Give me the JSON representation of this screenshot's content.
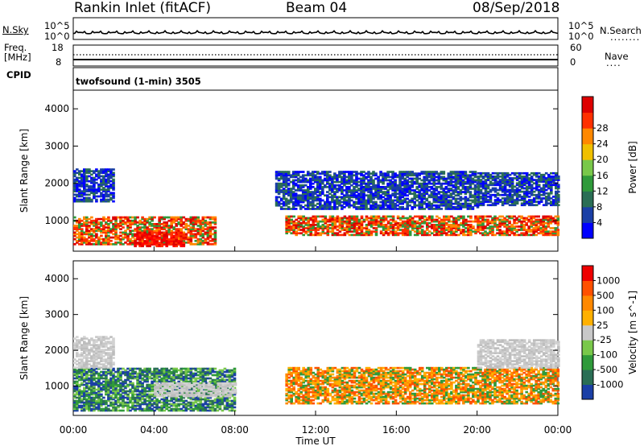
{
  "header": {
    "station": "Rankin Inlet (fitACF)",
    "beam": "Beam 04",
    "date": "08/Sep/2018"
  },
  "panels": {
    "nsky_label": "N.Sky",
    "nsky_top": "10^5",
    "nsky_bottom": "10^0",
    "nsearch_label": "N.Search",
    "nsearch_top": "10^5",
    "nsearch_bottom": "10^0",
    "freq_label": "Freq.",
    "freq_unit": "[MHz]",
    "freq_top": "18",
    "freq_bottom": "8",
    "nave_label": "Nave",
    "nave_top": "60",
    "nave_bottom": "0",
    "cpid_label": "CPID",
    "program": "twofsound (1-min) 3505"
  },
  "chart_data": [
    {
      "type": "heatmap",
      "title": "",
      "xlabel": "Time UT",
      "ylabel": "Slant Range [km]",
      "x_ticks": [
        "00:00",
        "04:00",
        "08:00",
        "12:00",
        "16:00",
        "20:00",
        "00:00"
      ],
      "y_ticks": [
        "1000",
        "2000",
        "3000",
        "4000"
      ],
      "xlim": [
        0,
        24
      ],
      "ylim": [
        180,
        4500
      ],
      "colorbar": {
        "label": "Power [dB]",
        "ticks": [
          "4",
          "8",
          "12",
          "16",
          "20",
          "24",
          "28"
        ],
        "colors": [
          "#0000ff",
          "#1a3fa6",
          "#2a6e55",
          "#2f9a3a",
          "#79c84a",
          "#f0c000",
          "#ff8800",
          "#ff3000",
          "#dd0000"
        ]
      },
      "regions": [
        {
          "t0": 0.0,
          "t1": 7.0,
          "r0": 350,
          "r1": 1100,
          "level": "high"
        },
        {
          "t0": 3.0,
          "t1": 5.5,
          "r0": 300,
          "r1": 700,
          "level": "max"
        },
        {
          "t0": 10.5,
          "t1": 24.0,
          "r0": 600,
          "r1": 1100,
          "level": "high"
        },
        {
          "t0": 0.0,
          "t1": 2.0,
          "r0": 1500,
          "r1": 2400,
          "level": "low"
        },
        {
          "t0": 10.0,
          "t1": 20.0,
          "r0": 1300,
          "r1": 2300,
          "level": "low"
        },
        {
          "t0": 20.0,
          "t1": 24.0,
          "r0": 1400,
          "r1": 2300,
          "level": "low"
        }
      ]
    },
    {
      "type": "heatmap",
      "title": "",
      "xlabel": "Time UT",
      "ylabel": "Slant Range [km]",
      "x_ticks": [
        "00:00",
        "04:00",
        "08:00",
        "12:00",
        "16:00",
        "20:00",
        "00:00"
      ],
      "y_ticks": [
        "1000",
        "2000",
        "3000",
        "4000"
      ],
      "xlim": [
        0,
        24
      ],
      "ylim": [
        180,
        4500
      ],
      "colorbar": {
        "label": "Velocity [m s^-1]",
        "ticks": [
          "1000",
          "500",
          "100",
          "25",
          "-25",
          "-100",
          "-500",
          "-1000"
        ],
        "colors": [
          "#1a3fa6",
          "#2a6e55",
          "#2f9a3a",
          "#79c84a",
          "#c8c8c8",
          "#ffb000",
          "#ff8800",
          "#ff5000",
          "#ee0000"
        ]
      },
      "regions": [
        {
          "t0": 0.0,
          "t1": 8.0,
          "r0": 300,
          "r1": 1500,
          "level": "mixed-green"
        },
        {
          "t0": 4.0,
          "t1": 8.0,
          "r0": 700,
          "r1": 1100,
          "level": "gray"
        },
        {
          "t0": 10.5,
          "t1": 24.0,
          "r0": 500,
          "r1": 1500,
          "level": "orange"
        },
        {
          "t0": 0.0,
          "t1": 2.0,
          "r0": 1500,
          "r1": 2400,
          "level": "gray"
        },
        {
          "t0": 20.0,
          "t1": 24.0,
          "r0": 1500,
          "r1": 2300,
          "level": "gray"
        }
      ]
    }
  ]
}
